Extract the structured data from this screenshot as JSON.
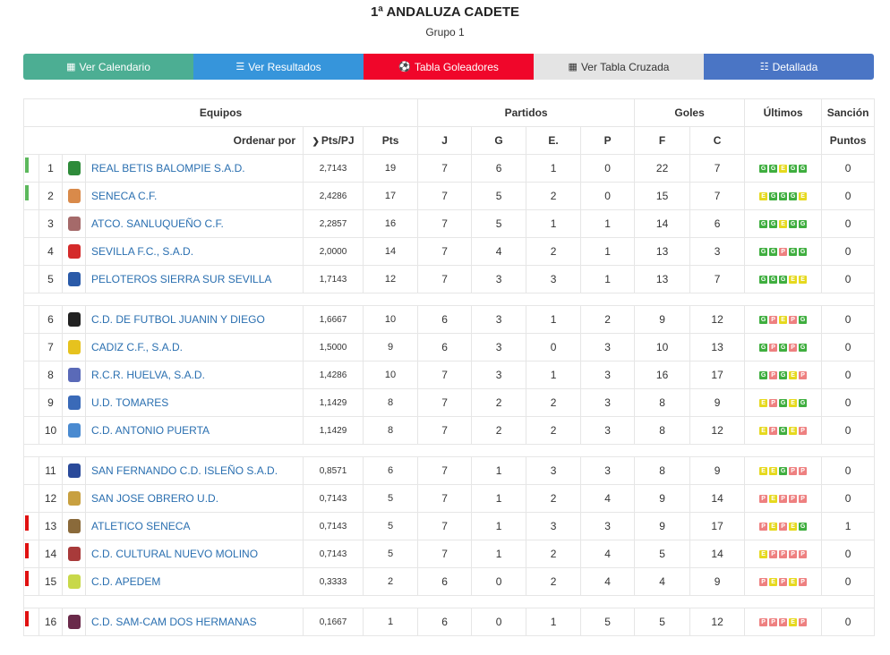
{
  "header": {
    "title": "1ª ANDALUZA CADETE",
    "subtitle": "Grupo 1"
  },
  "nav": [
    {
      "label": "Ver Calendario",
      "icon": "calendar-icon",
      "glyph": "▦",
      "color": "#4cae93"
    },
    {
      "label": "Ver Resultados",
      "icon": "list-icon",
      "glyph": "☰",
      "color": "#3695db"
    },
    {
      "label": "Tabla Goleadores",
      "icon": "soccer-ball-icon",
      "glyph": "⚽",
      "color": "#f0062a"
    },
    {
      "label": "Ver Tabla Cruzada",
      "icon": "calculator-icon",
      "glyph": "▦",
      "color": "#e4e4e4",
      "text_color": "#333333"
    },
    {
      "label": "Detallada",
      "icon": "table-icon",
      "glyph": "☷",
      "color": "#4a75c5"
    }
  ],
  "table_headers": {
    "equipos": "Equipos",
    "partidos": "Partidos",
    "goles": "Goles",
    "ultimos": "Últimos",
    "sancion": "Sanción",
    "ordenar": "Ordenar por",
    "ppj": "Pts/PJ",
    "pts": "Pts",
    "j": "J",
    "g": "G",
    "e": "E.",
    "p": "P",
    "f": "F",
    "c": "C",
    "puntos": "Puntos"
  },
  "colors": {
    "promotion": "#5cb85c",
    "relegation": "#e01010",
    "win": "#3fae3f",
    "draw": "#e6d91e",
    "loss": "#ee8080"
  },
  "standings": [
    {
      "pos": "1",
      "team": "REAL BETIS BALOMPIE S.A.D.",
      "ppj": "2,7143",
      "pts": "19",
      "j": "7",
      "g": "6",
      "e": "1",
      "p": "0",
      "f": "22",
      "c": "7",
      "form": [
        "G",
        "G",
        "E",
        "G",
        "G"
      ],
      "sancion": "0",
      "marker": "promotion",
      "crest": "#2e8b3a",
      "crest_name": "betis-crest-icon"
    },
    {
      "pos": "2",
      "team": "SENECA C.F.",
      "ppj": "2,4286",
      "pts": "17",
      "j": "7",
      "g": "5",
      "e": "2",
      "p": "0",
      "f": "15",
      "c": "7",
      "form": [
        "E",
        "G",
        "G",
        "G",
        "E"
      ],
      "sancion": "0",
      "marker": "promotion",
      "crest": "#d98a4a",
      "crest_name": "seneca-crest-icon"
    },
    {
      "pos": "3",
      "team": "ATCO. SANLUQUEÑO C.F.",
      "ppj": "2,2857",
      "pts": "16",
      "j": "7",
      "g": "5",
      "e": "1",
      "p": "1",
      "f": "14",
      "c": "6",
      "form": [
        "G",
        "G",
        "E",
        "G",
        "G"
      ],
      "sancion": "0",
      "marker": "",
      "crest": "#a56a6a",
      "crest_name": "sanluqueno-crest-icon"
    },
    {
      "pos": "4",
      "team": "SEVILLA F.C., S.A.D.",
      "ppj": "2,0000",
      "pts": "14",
      "j": "7",
      "g": "4",
      "e": "2",
      "p": "1",
      "f": "13",
      "c": "3",
      "form": [
        "G",
        "G",
        "P",
        "G",
        "G"
      ],
      "sancion": "0",
      "marker": "",
      "crest": "#d42a2a",
      "crest_name": "sevilla-crest-icon"
    },
    {
      "pos": "5",
      "team": "PELOTEROS SIERRA SUR SEVILLA",
      "ppj": "1,7143",
      "pts": "12",
      "j": "7",
      "g": "3",
      "e": "3",
      "p": "1",
      "f": "13",
      "c": "7",
      "form": [
        "G",
        "G",
        "G",
        "E",
        "E"
      ],
      "sancion": "0",
      "marker": "",
      "crest": "#2a5aa8",
      "crest_name": "peloteros-crest-icon"
    },
    {
      "separator": true
    },
    {
      "pos": "6",
      "team": "C.D. DE FUTBOL JUANIN Y DIEGO",
      "ppj": "1,6667",
      "pts": "10",
      "j": "6",
      "g": "3",
      "e": "1",
      "p": "2",
      "f": "9",
      "c": "12",
      "form": [
        "G",
        "P",
        "E",
        "P",
        "G"
      ],
      "sancion": "0",
      "marker": "",
      "crest": "#222222",
      "crest_name": "juanin-crest-icon"
    },
    {
      "pos": "7",
      "team": "CADIZ C.F., S.A.D.",
      "ppj": "1,5000",
      "pts": "9",
      "j": "6",
      "g": "3",
      "e": "0",
      "p": "3",
      "f": "10",
      "c": "13",
      "form": [
        "G",
        "P",
        "G",
        "P",
        "G"
      ],
      "sancion": "0",
      "marker": "",
      "crest": "#e6c21e",
      "crest_name": "cadiz-crest-icon"
    },
    {
      "pos": "8",
      "team": "R.C.R. HUELVA, S.A.D.",
      "ppj": "1,4286",
      "pts": "10",
      "j": "7",
      "g": "3",
      "e": "1",
      "p": "3",
      "f": "16",
      "c": "17",
      "form": [
        "G",
        "P",
        "G",
        "E",
        "P"
      ],
      "sancion": "0",
      "marker": "",
      "crest": "#5a6ab8",
      "crest_name": "huelva-crest-icon"
    },
    {
      "pos": "9",
      "team": "U.D. TOMARES",
      "ppj": "1,1429",
      "pts": "8",
      "j": "7",
      "g": "2",
      "e": "2",
      "p": "3",
      "f": "8",
      "c": "9",
      "form": [
        "E",
        "P",
        "G",
        "E",
        "G"
      ],
      "sancion": "0",
      "marker": "",
      "crest": "#3a6ab8",
      "crest_name": "tomares-crest-icon"
    },
    {
      "pos": "10",
      "team": "C.D. ANTONIO PUERTA",
      "ppj": "1,1429",
      "pts": "8",
      "j": "7",
      "g": "2",
      "e": "2",
      "p": "3",
      "f": "8",
      "c": "12",
      "form": [
        "E",
        "P",
        "G",
        "E",
        "P"
      ],
      "sancion": "0",
      "marker": "",
      "crest": "#4a8ad0",
      "crest_name": "antonio-puerta-crest-icon"
    },
    {
      "separator": true
    },
    {
      "pos": "11",
      "team": "SAN FERNANDO C.D. ISLEÑO S.A.D.",
      "ppj": "0,8571",
      "pts": "6",
      "j": "7",
      "g": "1",
      "e": "3",
      "p": "3",
      "f": "8",
      "c": "9",
      "form": [
        "E",
        "E",
        "G",
        "P",
        "P"
      ],
      "sancion": "0",
      "marker": "",
      "crest": "#2a4a9a",
      "crest_name": "san-fernando-crest-icon"
    },
    {
      "pos": "12",
      "team": "SAN JOSE OBRERO U.D.",
      "ppj": "0,7143",
      "pts": "5",
      "j": "7",
      "g": "1",
      "e": "2",
      "p": "4",
      "f": "9",
      "c": "14",
      "form": [
        "P",
        "E",
        "P",
        "P",
        "P"
      ],
      "sancion": "0",
      "marker": "",
      "crest": "#c8a040",
      "crest_name": "san-jose-crest-icon"
    },
    {
      "pos": "13",
      "team": "ATLETICO SENECA",
      "ppj": "0,7143",
      "pts": "5",
      "j": "7",
      "g": "1",
      "e": "3",
      "p": "3",
      "f": "9",
      "c": "17",
      "form": [
        "P",
        "E",
        "P",
        "E",
        "G"
      ],
      "sancion": "1",
      "marker": "relegation",
      "crest": "#8a6a3a",
      "crest_name": "atletico-seneca-crest-icon"
    },
    {
      "pos": "14",
      "team": "C.D. CULTURAL NUEVO MOLINO",
      "ppj": "0,7143",
      "pts": "5",
      "j": "7",
      "g": "1",
      "e": "2",
      "p": "4",
      "f": "5",
      "c": "14",
      "form": [
        "E",
        "P",
        "P",
        "P",
        "P"
      ],
      "sancion": "0",
      "marker": "relegation",
      "crest": "#a83a3a",
      "crest_name": "nuevo-molino-crest-icon"
    },
    {
      "pos": "15",
      "team": "C.D. APEDEM",
      "ppj": "0,3333",
      "pts": "2",
      "j": "6",
      "g": "0",
      "e": "2",
      "p": "4",
      "f": "4",
      "c": "9",
      "form": [
        "P",
        "E",
        "P",
        "E",
        "P"
      ],
      "sancion": "0",
      "marker": "relegation",
      "crest": "#c8d84a",
      "crest_name": "apedem-crest-icon"
    },
    {
      "separator": true
    },
    {
      "pos": "16",
      "team": "C.D. SAM-CAM DOS HERMANAS",
      "ppj": "0,1667",
      "pts": "1",
      "j": "6",
      "g": "0",
      "e": "1",
      "p": "5",
      "f": "5",
      "c": "12",
      "form": [
        "P",
        "P",
        "P",
        "E",
        "P"
      ],
      "sancion": "0",
      "marker": "relegation",
      "crest": "#6a2a4a",
      "crest_name": "sam-cam-crest-icon"
    }
  ]
}
